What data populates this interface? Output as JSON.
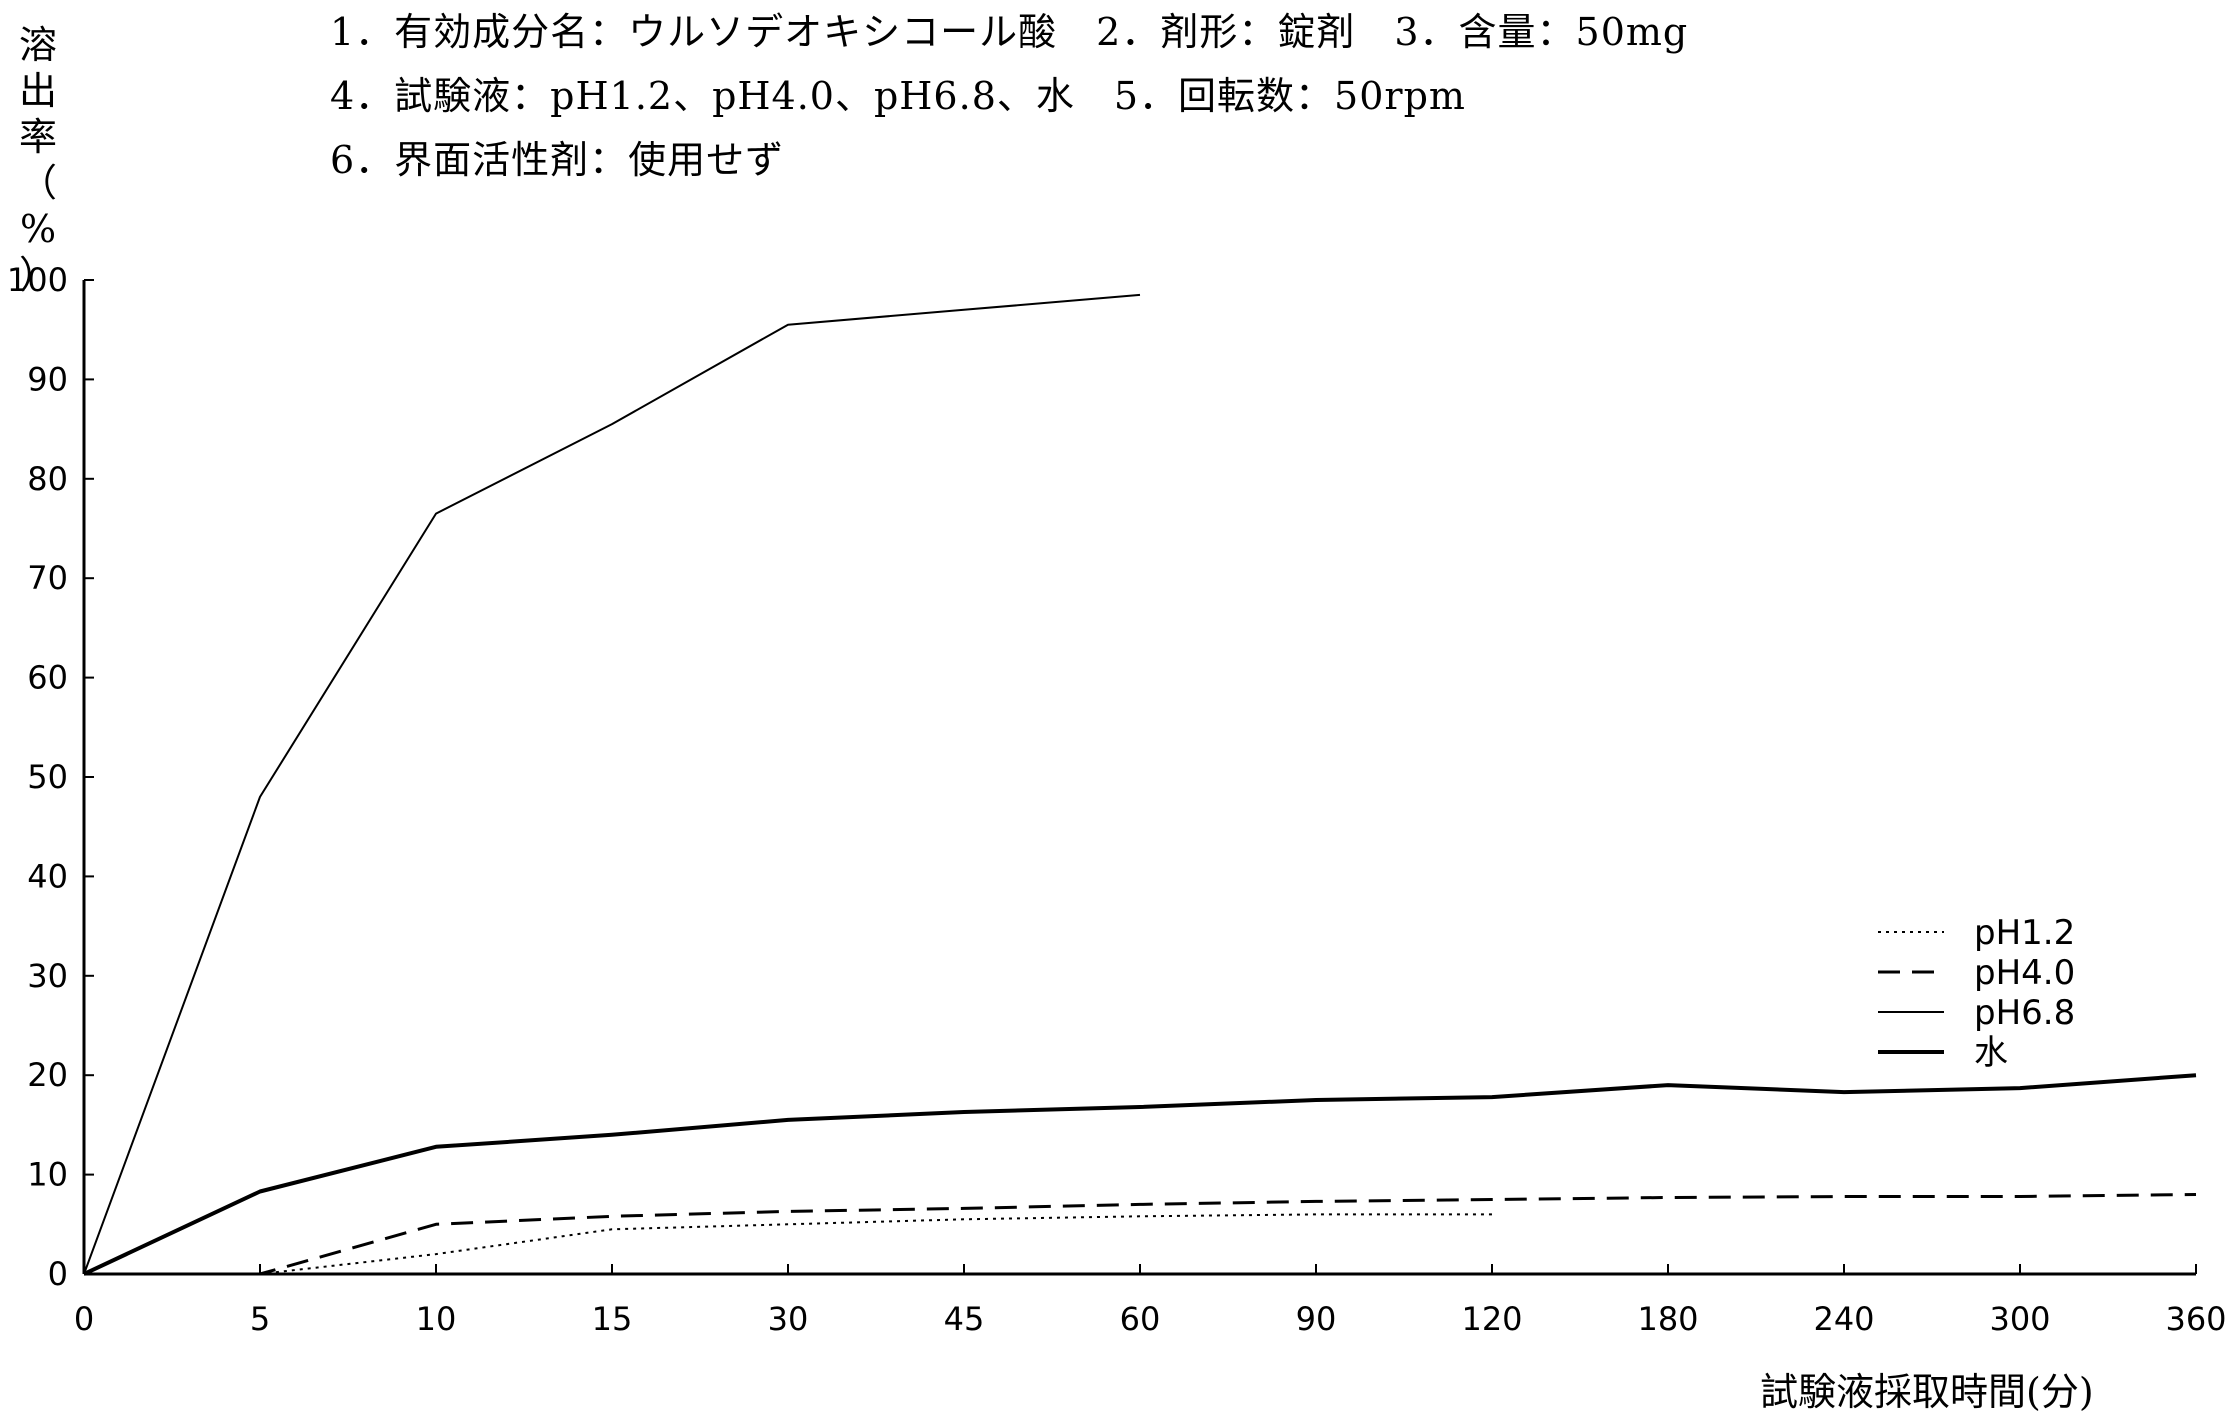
{
  "header": {
    "line1": "1．有効成分名：ウルソデオキシコール酸　2．剤形：錠剤　3．含量：50mg",
    "line2": "4．試験液：pH1.2、pH4.0、pH6.8、水　5．回転数：50rpm",
    "line3": "6．界面活性剤：使用せず"
  },
  "chart_data": {
    "type": "line",
    "ylabel": "溶出率(%)",
    "xlabel": "試験液採取時間(分)",
    "ylim": [
      0,
      100
    ],
    "yticks": [
      "0",
      "10",
      "20",
      "30",
      "40",
      "50",
      "60",
      "70",
      "80",
      "90",
      "100"
    ],
    "categories": [
      "0",
      "5",
      "10",
      "15",
      "30",
      "45",
      "60",
      "90",
      "120",
      "180",
      "240",
      "300",
      "360"
    ],
    "grid": false,
    "legend_position": "right",
    "series": [
      {
        "name": "pH1.2",
        "style": "dotted",
        "values": [
          0,
          0,
          2,
          4.5,
          5,
          5.5,
          5.8,
          6,
          6,
          null,
          null,
          null,
          null
        ]
      },
      {
        "name": "pH4.0",
        "style": "dashed",
        "values": [
          0,
          0,
          5,
          5.8,
          6.3,
          6.6,
          7,
          7.3,
          7.5,
          7.7,
          7.8,
          7.8,
          8
        ]
      },
      {
        "name": "pH6.8",
        "style": "solid-thin",
        "values": [
          0,
          48,
          76.5,
          85.5,
          95.5,
          97,
          98.5,
          null,
          null,
          null,
          null,
          null,
          null
        ]
      },
      {
        "name": "水",
        "style": "solid-thick",
        "values": [
          0,
          8.3,
          12.8,
          14,
          15.5,
          16.3,
          16.8,
          17.5,
          17.8,
          19,
          18.3,
          18.7,
          20
        ]
      }
    ]
  }
}
